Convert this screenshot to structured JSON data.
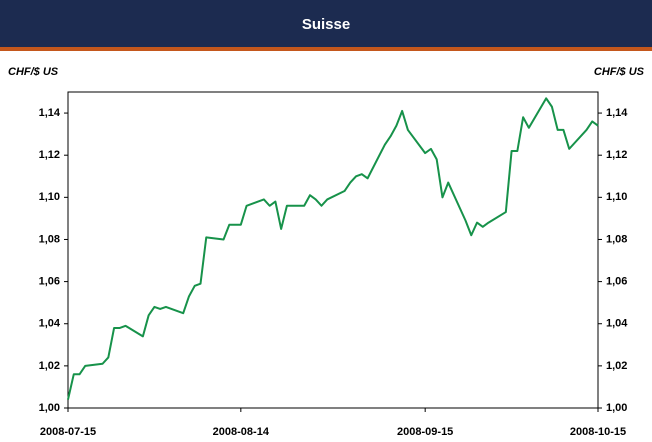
{
  "chart_data": {
    "type": "line",
    "title": "Suisse",
    "y_label": "CHF/$ US",
    "y2_label": "CHF/$ US",
    "x": [
      "2008-07-15",
      "2008-07-16",
      "2008-07-17",
      "2008-07-18",
      "2008-07-21",
      "2008-07-22",
      "2008-07-23",
      "2008-07-24",
      "2008-07-25",
      "2008-07-28",
      "2008-07-29",
      "2008-07-30",
      "2008-07-31",
      "2008-08-01",
      "2008-08-04",
      "2008-08-05",
      "2008-08-06",
      "2008-08-07",
      "2008-08-08",
      "2008-08-11",
      "2008-08-12",
      "2008-08-13",
      "2008-08-14",
      "2008-08-15",
      "2008-08-18",
      "2008-08-19",
      "2008-08-20",
      "2008-08-21",
      "2008-08-22",
      "2008-08-25",
      "2008-08-26",
      "2008-08-27",
      "2008-08-28",
      "2008-08-29",
      "2008-09-01",
      "2008-09-02",
      "2008-09-03",
      "2008-09-04",
      "2008-09-05",
      "2008-09-08",
      "2008-09-09",
      "2008-09-10",
      "2008-09-11",
      "2008-09-12",
      "2008-09-15",
      "2008-09-16",
      "2008-09-17",
      "2008-09-18",
      "2008-09-19",
      "2008-09-22",
      "2008-09-23",
      "2008-09-24",
      "2008-09-25",
      "2008-09-26",
      "2008-09-29",
      "2008-09-30",
      "2008-10-01",
      "2008-10-02",
      "2008-10-03",
      "2008-10-06",
      "2008-10-07",
      "2008-10-08",
      "2008-10-09",
      "2008-10-10",
      "2008-10-13",
      "2008-10-14",
      "2008-10-15"
    ],
    "series": [
      {
        "name": "CHF/$ US",
        "color": "#17924a",
        "values": [
          1.004,
          1.016,
          1.016,
          1.02,
          1.021,
          1.024,
          1.038,
          1.038,
          1.039,
          1.034,
          1.044,
          1.048,
          1.047,
          1.048,
          1.045,
          1.053,
          1.058,
          1.059,
          1.081,
          1.08,
          1.087,
          1.087,
          1.087,
          1.096,
          1.099,
          1.096,
          1.098,
          1.085,
          1.096,
          1.096,
          1.101,
          1.099,
          1.096,
          1.099,
          1.103,
          1.107,
          1.11,
          1.111,
          1.109,
          1.125,
          1.129,
          1.134,
          1.141,
          1.132,
          1.121,
          1.123,
          1.118,
          1.1,
          1.107,
          1.089,
          1.082,
          1.088,
          1.086,
          1.088,
          1.093,
          1.122,
          1.122,
          1.138,
          1.133,
          1.147,
          1.143,
          1.132,
          1.132,
          1.123,
          1.132,
          1.136,
          1.134
        ]
      }
    ],
    "xlim": [
      "2008-07-15",
      "2008-10-15"
    ],
    "xticks": [
      "2008-07-15",
      "2008-08-14",
      "2008-09-15",
      "2008-10-15"
    ],
    "ylim": [
      1.0,
      1.15
    ],
    "yticks": [
      {
        "value": 1.0,
        "label": "1,00"
      },
      {
        "value": 1.02,
        "label": "1,02"
      },
      {
        "value": 1.04,
        "label": "1,04"
      },
      {
        "value": 1.06,
        "label": "1,06"
      },
      {
        "value": 1.08,
        "label": "1,08"
      },
      {
        "value": 1.1,
        "label": "1,10"
      },
      {
        "value": 1.12,
        "label": "1,12"
      },
      {
        "value": 1.14,
        "label": "1,14"
      }
    ],
    "grid": false
  }
}
